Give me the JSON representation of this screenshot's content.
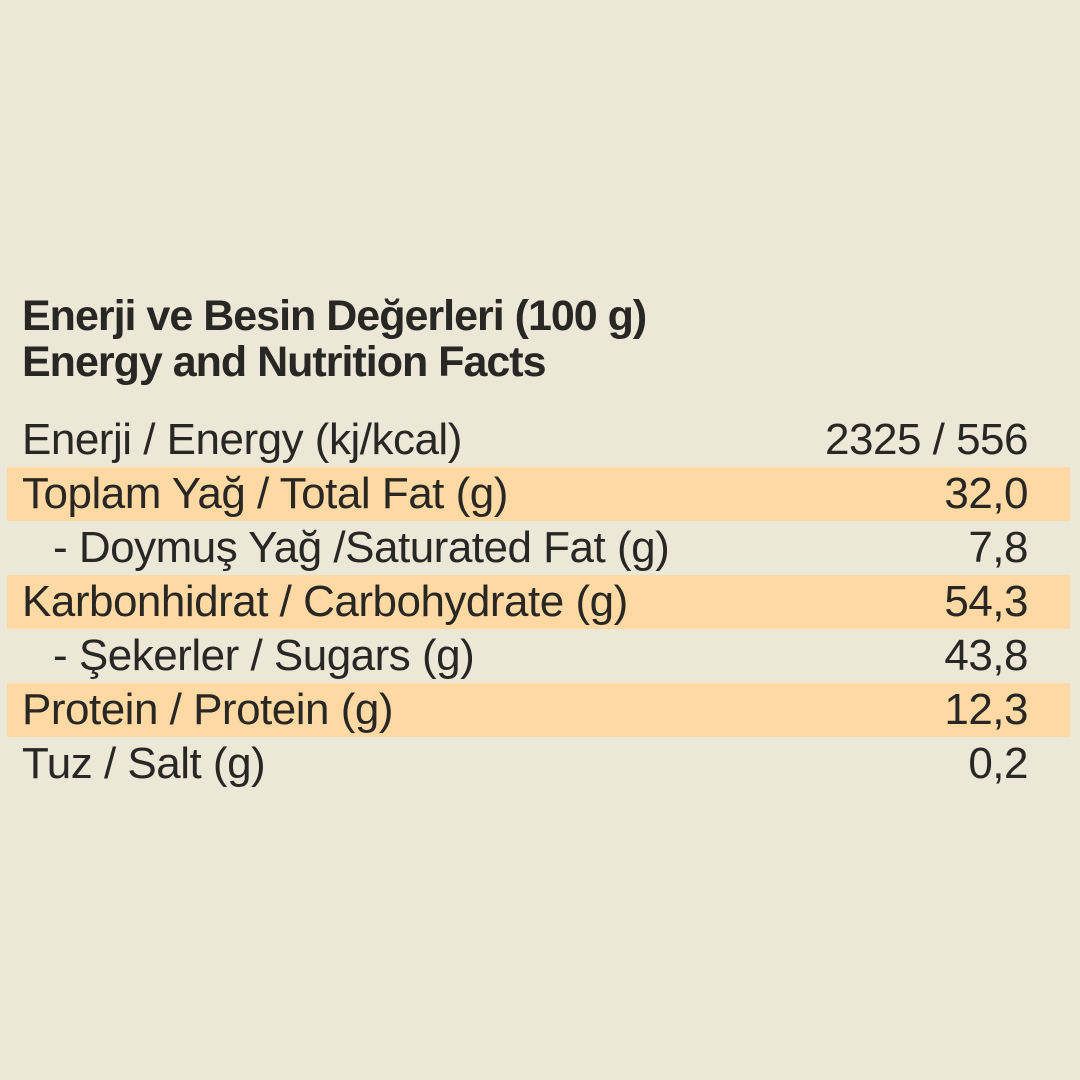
{
  "page": {
    "background_color": "#ece8d8",
    "highlight_color": "#ffd9a3",
    "text_color": "#292723"
  },
  "title": {
    "line1": "Enerji ve Besin Değerleri (100 g)",
    "line2": "Energy and Nutrition Facts"
  },
  "table": {
    "rows": [
      {
        "label": "Enerji / Energy (kj/kcal)",
        "value": "2325 / 556",
        "highlighted": false,
        "indent": false
      },
      {
        "label": "Toplam Yağ / Total Fat (g)",
        "value": "32,0",
        "highlighted": true,
        "indent": false
      },
      {
        "label": "- Doymuş Yağ /Saturated Fat (g)",
        "value": "7,8",
        "highlighted": false,
        "indent": true
      },
      {
        "label": "Karbonhidrat / Carbohydrate (g)",
        "value": "54,3",
        "highlighted": true,
        "indent": false
      },
      {
        "label": "- Şekerler / Sugars (g)",
        "value": "43,8",
        "highlighted": false,
        "indent": true
      },
      {
        "label": "Protein / Protein (g)",
        "value": "12,3",
        "highlighted": true,
        "indent": false
      },
      {
        "label": "Tuz / Salt (g)",
        "value": "0,2",
        "highlighted": false,
        "indent": false
      }
    ]
  }
}
